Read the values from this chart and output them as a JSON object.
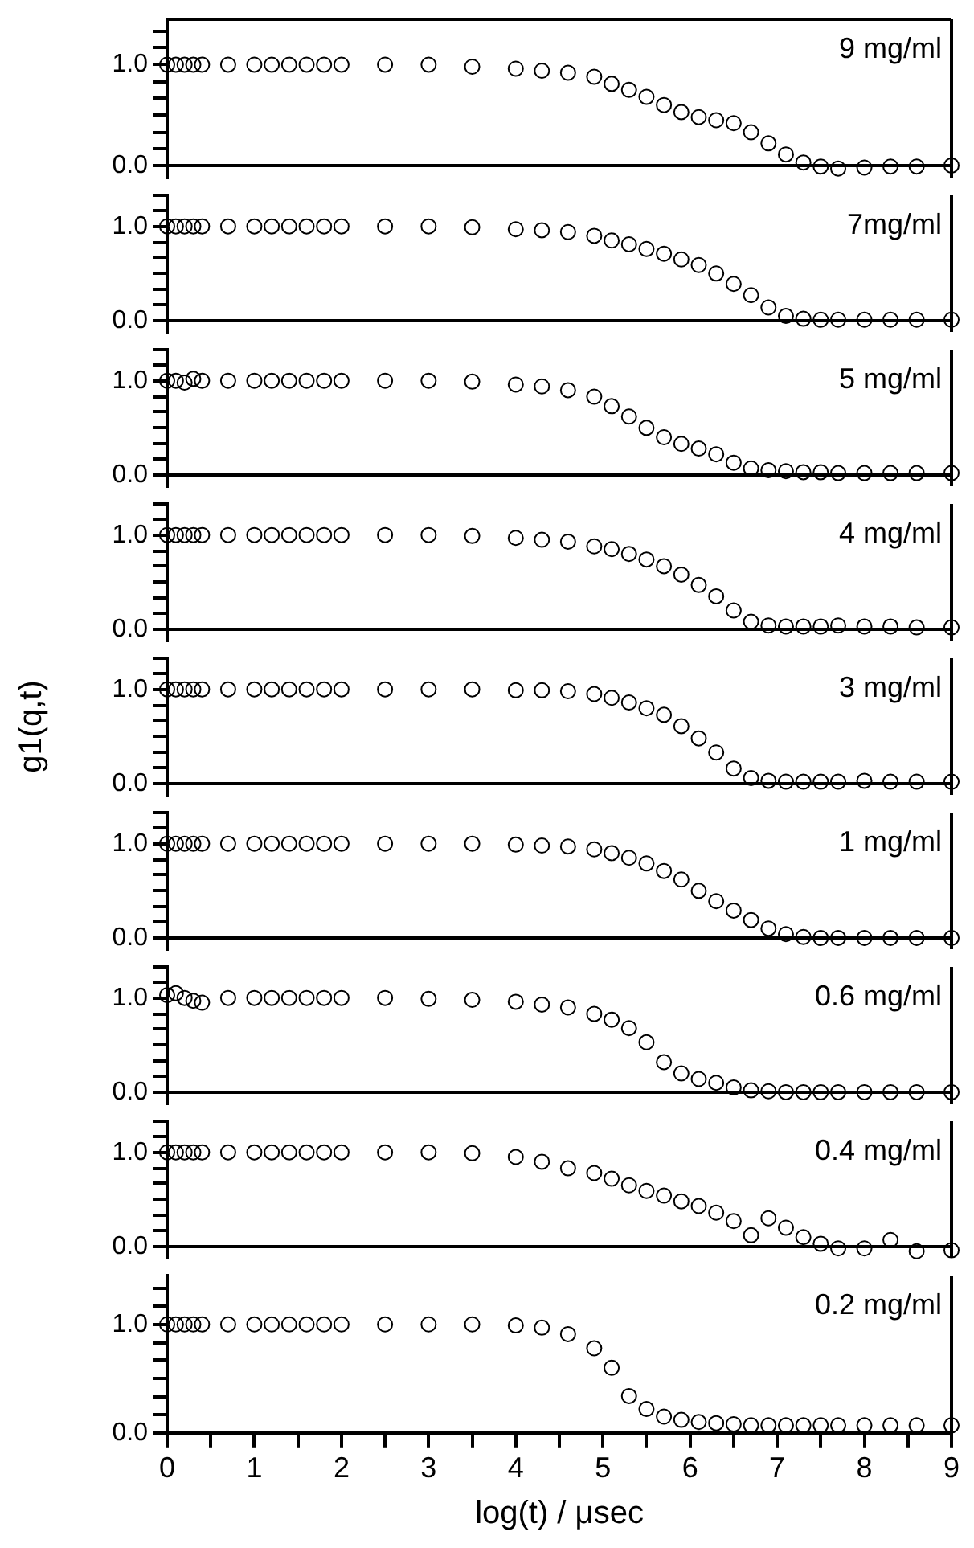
{
  "chart_data": [
    {
      "type": "scatter",
      "annotations": [
        "9 mg/ml"
      ],
      "x": [
        0,
        0.1,
        0.2,
        0.3,
        0.4,
        0.7,
        1.0,
        1.2,
        1.4,
        1.6,
        1.8,
        2.0,
        2.5,
        3.0,
        3.5,
        4.0,
        4.3,
        4.6,
        4.9,
        5.1,
        5.3,
        5.5,
        5.7,
        5.9,
        6.1,
        6.3,
        6.5,
        6.7,
        6.9,
        7.1,
        7.3,
        7.5,
        7.7,
        8.0,
        8.3,
        8.6,
        9.0
      ],
      "values": [
        1.0,
        1.0,
        1.0,
        1.0,
        1.0,
        1.0,
        1.0,
        1.0,
        1.0,
        1.0,
        1.0,
        1.0,
        1.0,
        1.0,
        0.98,
        0.96,
        0.94,
        0.92,
        0.88,
        0.81,
        0.75,
        0.68,
        0.6,
        0.53,
        0.48,
        0.45,
        0.42,
        0.33,
        0.22,
        0.11,
        0.03,
        -0.01,
        -0.03,
        -0.02,
        -0.01,
        -0.01,
        0.0
      ],
      "color": "#000000",
      "marker": "circle",
      "xlim": [
        0,
        9
      ],
      "ylim": [
        -0.12,
        1.45
      ],
      "yticks": [
        {
          "value": 0,
          "label": "0.0"
        },
        {
          "value": 0.17,
          "label": null
        },
        {
          "value": 0.33,
          "label": null
        },
        {
          "value": 0.5,
          "label": null
        },
        {
          "value": 0.67,
          "label": null
        },
        {
          "value": 0.83,
          "label": null
        },
        {
          "value": 1,
          "label": "1.0"
        },
        {
          "value": 1.17,
          "label": null
        },
        {
          "value": 1.33,
          "label": null
        }
      ],
      "ref_lines": [
        {
          "axis": "y",
          "value": 0
        }
      ],
      "tick_labels": "y",
      "grid": false,
      "legend": false
    },
    {
      "type": "scatter",
      "annotations": [
        "7mg/ml"
      ],
      "x": [
        0,
        0.1,
        0.2,
        0.3,
        0.4,
        0.7,
        1.0,
        1.2,
        1.4,
        1.6,
        1.8,
        2.0,
        2.5,
        3.0,
        3.5,
        4.0,
        4.3,
        4.6,
        4.9,
        5.1,
        5.3,
        5.5,
        5.7,
        5.9,
        6.1,
        6.3,
        6.5,
        6.7,
        6.9,
        7.1,
        7.3,
        7.5,
        7.7,
        8.0,
        8.3,
        8.6,
        9.0
      ],
      "values": [
        1.0,
        1.0,
        1.0,
        1.0,
        1.0,
        1.0,
        1.0,
        1.0,
        1.0,
        1.0,
        1.0,
        1.0,
        1.0,
        1.0,
        0.99,
        0.97,
        0.96,
        0.94,
        0.9,
        0.85,
        0.81,
        0.76,
        0.71,
        0.65,
        0.59,
        0.5,
        0.39,
        0.27,
        0.14,
        0.05,
        0.02,
        0.01,
        0.01,
        0.01,
        0.01,
        0.01,
        0.01
      ],
      "color": "#000000",
      "marker": "circle",
      "xlim": [
        0,
        9
      ],
      "ylim": [
        -0.12,
        1.33
      ],
      "yticks": [
        {
          "value": 0,
          "label": "0.0"
        },
        {
          "value": 0.17,
          "label": null
        },
        {
          "value": 0.33,
          "label": null
        },
        {
          "value": 0.5,
          "label": null
        },
        {
          "value": 0.67,
          "label": null
        },
        {
          "value": 0.83,
          "label": null
        },
        {
          "value": 1,
          "label": "1.0"
        },
        {
          "value": 1.17,
          "label": null
        },
        {
          "value": 1.33,
          "label": null
        }
      ],
      "ref_lines": [
        {
          "axis": "y",
          "value": 0
        }
      ],
      "tick_labels": "y",
      "grid": false,
      "legend": false
    },
    {
      "type": "scatter",
      "annotations": [
        "5 mg/ml"
      ],
      "x": [
        0,
        0.1,
        0.2,
        0.3,
        0.4,
        0.7,
        1.0,
        1.2,
        1.4,
        1.6,
        1.8,
        2.0,
        2.5,
        3.0,
        3.5,
        4.0,
        4.3,
        4.6,
        4.9,
        5.1,
        5.3,
        5.5,
        5.7,
        5.9,
        6.1,
        6.3,
        6.5,
        6.7,
        6.9,
        7.1,
        7.3,
        7.5,
        7.7,
        8.0,
        8.3,
        8.6,
        9.0
      ],
      "values": [
        1.0,
        1.0,
        0.98,
        1.02,
        1.0,
        1.0,
        1.0,
        1.0,
        1.0,
        1.0,
        1.0,
        1.0,
        1.0,
        1.0,
        0.99,
        0.96,
        0.94,
        0.9,
        0.83,
        0.73,
        0.62,
        0.5,
        0.4,
        0.33,
        0.28,
        0.22,
        0.13,
        0.07,
        0.05,
        0.04,
        0.03,
        0.03,
        0.02,
        0.02,
        0.02,
        0.02,
        0.02
      ],
      "color": "#000000",
      "marker": "circle",
      "xlim": [
        0,
        9
      ],
      "ylim": [
        -0.12,
        1.33
      ],
      "yticks": [
        {
          "value": 0,
          "label": "0.0"
        },
        {
          "value": 0.17,
          "label": null
        },
        {
          "value": 0.33,
          "label": null
        },
        {
          "value": 0.5,
          "label": null
        },
        {
          "value": 0.67,
          "label": null
        },
        {
          "value": 0.83,
          "label": null
        },
        {
          "value": 1,
          "label": "1.0"
        },
        {
          "value": 1.17,
          "label": null
        },
        {
          "value": 1.33,
          "label": null
        }
      ],
      "ref_lines": [
        {
          "axis": "y",
          "value": 0
        }
      ],
      "tick_labels": "y",
      "grid": false,
      "legend": false
    },
    {
      "type": "scatter",
      "annotations": [
        "4 mg/ml"
      ],
      "x": [
        0,
        0.1,
        0.2,
        0.3,
        0.4,
        0.7,
        1.0,
        1.2,
        1.4,
        1.6,
        1.8,
        2.0,
        2.5,
        3.0,
        3.5,
        4.0,
        4.3,
        4.6,
        4.9,
        5.1,
        5.3,
        5.5,
        5.7,
        5.9,
        6.1,
        6.3,
        6.5,
        6.7,
        6.9,
        7.1,
        7.3,
        7.5,
        7.7,
        8.0,
        8.3,
        8.6,
        9.0
      ],
      "values": [
        1.0,
        1.0,
        1.0,
        1.0,
        1.0,
        1.0,
        1.0,
        1.0,
        1.0,
        1.0,
        1.0,
        1.0,
        1.0,
        1.0,
        0.99,
        0.97,
        0.95,
        0.93,
        0.88,
        0.85,
        0.8,
        0.74,
        0.67,
        0.58,
        0.47,
        0.35,
        0.2,
        0.08,
        0.04,
        0.03,
        0.03,
        0.03,
        0.04,
        0.03,
        0.03,
        0.02,
        0.02
      ],
      "color": "#000000",
      "marker": "circle",
      "xlim": [
        0,
        9
      ],
      "ylim": [
        -0.12,
        1.33
      ],
      "yticks": [
        {
          "value": 0,
          "label": "0.0"
        },
        {
          "value": 0.17,
          "label": null
        },
        {
          "value": 0.33,
          "label": null
        },
        {
          "value": 0.5,
          "label": null
        },
        {
          "value": 0.67,
          "label": null
        },
        {
          "value": 0.83,
          "label": null
        },
        {
          "value": 1,
          "label": "1.0"
        },
        {
          "value": 1.17,
          "label": null
        },
        {
          "value": 1.33,
          "label": null
        }
      ],
      "ref_lines": [
        {
          "axis": "y",
          "value": 0
        }
      ],
      "tick_labels": "y",
      "grid": false,
      "legend": false
    },
    {
      "type": "scatter",
      "annotations": [
        "3 mg/ml"
      ],
      "ylabel": "g1(q,t)",
      "x": [
        0,
        0.1,
        0.2,
        0.3,
        0.4,
        0.7,
        1.0,
        1.2,
        1.4,
        1.6,
        1.8,
        2.0,
        2.5,
        3.0,
        3.5,
        4.0,
        4.3,
        4.6,
        4.9,
        5.1,
        5.3,
        5.5,
        5.7,
        5.9,
        6.1,
        6.3,
        6.5,
        6.7,
        6.9,
        7.1,
        7.3,
        7.5,
        7.7,
        8.0,
        8.3,
        8.6,
        9.0
      ],
      "values": [
        1.0,
        1.0,
        1.0,
        1.0,
        1.0,
        1.0,
        1.0,
        1.0,
        1.0,
        1.0,
        1.0,
        1.0,
        1.0,
        1.0,
        1.0,
        0.99,
        0.99,
        0.98,
        0.95,
        0.91,
        0.86,
        0.8,
        0.73,
        0.61,
        0.48,
        0.33,
        0.16,
        0.06,
        0.03,
        0.02,
        0.02,
        0.02,
        0.02,
        0.03,
        0.02,
        0.02,
        0.02
      ],
      "color": "#000000",
      "marker": "circle",
      "xlim": [
        0,
        9
      ],
      "ylim": [
        -0.12,
        1.33
      ],
      "yticks": [
        {
          "value": 0,
          "label": "0.0"
        },
        {
          "value": 0.17,
          "label": null
        },
        {
          "value": 0.33,
          "label": null
        },
        {
          "value": 0.5,
          "label": null
        },
        {
          "value": 0.67,
          "label": null
        },
        {
          "value": 0.83,
          "label": null
        },
        {
          "value": 1,
          "label": "1.0"
        },
        {
          "value": 1.17,
          "label": null
        },
        {
          "value": 1.33,
          "label": null
        }
      ],
      "ref_lines": [
        {
          "axis": "y",
          "value": 0
        }
      ],
      "tick_labels": "y",
      "grid": false,
      "legend": false
    },
    {
      "type": "scatter",
      "annotations": [
        "1 mg/ml"
      ],
      "x": [
        0,
        0.1,
        0.2,
        0.3,
        0.4,
        0.7,
        1.0,
        1.2,
        1.4,
        1.6,
        1.8,
        2.0,
        2.5,
        3.0,
        3.5,
        4.0,
        4.3,
        4.6,
        4.9,
        5.1,
        5.3,
        5.5,
        5.7,
        5.9,
        6.1,
        6.3,
        6.5,
        6.7,
        6.9,
        7.1,
        7.3,
        7.5,
        7.7,
        8.0,
        8.3,
        8.6,
        9.0
      ],
      "values": [
        1.0,
        1.0,
        1.0,
        1.0,
        1.0,
        1.0,
        1.0,
        1.0,
        1.0,
        1.0,
        1.0,
        1.0,
        1.0,
        1.0,
        1.0,
        0.99,
        0.98,
        0.97,
        0.94,
        0.9,
        0.85,
        0.79,
        0.71,
        0.62,
        0.5,
        0.39,
        0.29,
        0.19,
        0.1,
        0.04,
        0.01,
        0.0,
        0.0,
        0.0,
        0.0,
        0.0,
        0.0
      ],
      "color": "#000000",
      "marker": "circle",
      "xlim": [
        0,
        9
      ],
      "ylim": [
        -0.12,
        1.33
      ],
      "yticks": [
        {
          "value": 0,
          "label": "0.0"
        },
        {
          "value": 0.17,
          "label": null
        },
        {
          "value": 0.33,
          "label": null
        },
        {
          "value": 0.5,
          "label": null
        },
        {
          "value": 0.67,
          "label": null
        },
        {
          "value": 0.83,
          "label": null
        },
        {
          "value": 1,
          "label": "1.0"
        },
        {
          "value": 1.17,
          "label": null
        },
        {
          "value": 1.33,
          "label": null
        }
      ],
      "ref_lines": [
        {
          "axis": "y",
          "value": 0
        }
      ],
      "tick_labels": "y",
      "grid": false,
      "legend": false
    },
    {
      "type": "scatter",
      "annotations": [
        "0.6 mg/ml"
      ],
      "x": [
        0,
        0.1,
        0.2,
        0.3,
        0.4,
        0.7,
        1.0,
        1.2,
        1.4,
        1.6,
        1.8,
        2.0,
        2.5,
        3.0,
        3.5,
        4.0,
        4.3,
        4.6,
        4.9,
        5.1,
        5.3,
        5.5,
        5.7,
        5.9,
        6.1,
        6.3,
        6.5,
        6.7,
        6.9,
        7.1,
        7.3,
        7.5,
        7.7,
        8.0,
        8.3,
        8.6,
        9.0
      ],
      "values": [
        1.03,
        1.05,
        1.0,
        0.97,
        0.95,
        1.0,
        1.0,
        1.0,
        1.0,
        1.0,
        1.0,
        1.0,
        1.0,
        0.99,
        0.98,
        0.96,
        0.93,
        0.9,
        0.83,
        0.77,
        0.68,
        0.53,
        0.32,
        0.2,
        0.14,
        0.1,
        0.05,
        0.02,
        0.01,
        0.0,
        0.0,
        0.0,
        0.0,
        0.0,
        0.0,
        0.0,
        0.0
      ],
      "color": "#000000",
      "marker": "circle",
      "xlim": [
        0,
        9
      ],
      "ylim": [
        -0.12,
        1.33
      ],
      "yticks": [
        {
          "value": 0,
          "label": "0.0"
        },
        {
          "value": 0.17,
          "label": null
        },
        {
          "value": 0.33,
          "label": null
        },
        {
          "value": 0.5,
          "label": null
        },
        {
          "value": 0.67,
          "label": null
        },
        {
          "value": 0.83,
          "label": null
        },
        {
          "value": 1,
          "label": "1.0"
        },
        {
          "value": 1.17,
          "label": null
        },
        {
          "value": 1.33,
          "label": null
        }
      ],
      "ref_lines": [
        {
          "axis": "y",
          "value": 0
        }
      ],
      "tick_labels": "y",
      "grid": false,
      "legend": false
    },
    {
      "type": "scatter",
      "annotations": [
        "0.4 mg/ml"
      ],
      "x": [
        0,
        0.1,
        0.2,
        0.3,
        0.4,
        0.7,
        1.0,
        1.2,
        1.4,
        1.6,
        1.8,
        2.0,
        2.5,
        3.0,
        3.5,
        4.0,
        4.3,
        4.6,
        4.9,
        5.1,
        5.3,
        5.5,
        5.7,
        5.9,
        6.1,
        6.3,
        6.5,
        6.7,
        6.9,
        7.1,
        7.3,
        7.5,
        7.7,
        8.0,
        8.3,
        8.6,
        9.0
      ],
      "values": [
        1.0,
        1.0,
        1.0,
        1.0,
        1.0,
        1.0,
        1.0,
        1.0,
        1.0,
        1.0,
        1.0,
        1.0,
        1.0,
        1.0,
        0.99,
        0.95,
        0.9,
        0.83,
        0.78,
        0.72,
        0.65,
        0.59,
        0.54,
        0.48,
        0.43,
        0.36,
        0.27,
        0.12,
        0.3,
        0.2,
        0.1,
        0.03,
        -0.02,
        -0.02,
        0.07,
        -0.05,
        -0.04
      ],
      "color": "#000000",
      "marker": "circle",
      "xlim": [
        0,
        9
      ],
      "ylim": [
        -0.12,
        1.33
      ],
      "yticks": [
        {
          "value": 0,
          "label": "0.0"
        },
        {
          "value": 0.17,
          "label": null
        },
        {
          "value": 0.33,
          "label": null
        },
        {
          "value": 0.5,
          "label": null
        },
        {
          "value": 0.67,
          "label": null
        },
        {
          "value": 0.83,
          "label": null
        },
        {
          "value": 1,
          "label": "1.0"
        },
        {
          "value": 1.17,
          "label": null
        },
        {
          "value": 1.33,
          "label": null
        }
      ],
      "ref_lines": [
        {
          "axis": "y",
          "value": 0
        }
      ],
      "tick_labels": "y",
      "grid": false,
      "legend": false
    },
    {
      "type": "scatter",
      "annotations": [
        "0.2 mg/ml"
      ],
      "xlabel": "log(t) / μsec",
      "x": [
        0,
        0.1,
        0.2,
        0.3,
        0.4,
        0.7,
        1.0,
        1.2,
        1.4,
        1.6,
        1.8,
        2.0,
        2.5,
        3.0,
        3.5,
        4.0,
        4.3,
        4.6,
        4.9,
        5.1,
        5.3,
        5.5,
        5.7,
        5.9,
        6.1,
        6.3,
        6.5,
        6.7,
        6.9,
        7.1,
        7.3,
        7.5,
        7.7,
        8.0,
        8.3,
        8.6,
        9.0
      ],
      "values": [
        1.0,
        1.0,
        1.0,
        1.0,
        1.0,
        1.0,
        1.0,
        1.0,
        1.0,
        1.0,
        1.0,
        1.0,
        1.0,
        1.0,
        1.0,
        0.99,
        0.97,
        0.91,
        0.78,
        0.6,
        0.34,
        0.22,
        0.15,
        0.12,
        0.1,
        0.09,
        0.08,
        0.07,
        0.07,
        0.07,
        0.07,
        0.07,
        0.07,
        0.07,
        0.07,
        0.07,
        0.07
      ],
      "color": "#000000",
      "marker": "circle",
      "xlim": [
        0,
        9
      ],
      "xticks": [
        0,
        {
          "value": 0.5,
          "label": null
        },
        1,
        {
          "value": 1.5,
          "label": null
        },
        2,
        {
          "value": 2.5,
          "label": null
        },
        3,
        {
          "value": 3.5,
          "label": null
        },
        4,
        {
          "value": 4.5,
          "label": null
        },
        5,
        {
          "value": 5.5,
          "label": null
        },
        6,
        {
          "value": 6.5,
          "label": null
        },
        7,
        {
          "value": 7.5,
          "label": null
        },
        8,
        {
          "value": 8.5,
          "label": null
        },
        9
      ],
      "ylim": [
        0,
        1.45
      ],
      "yticks": [
        {
          "value": 0,
          "label": "0.0"
        },
        {
          "value": 0.17,
          "label": null
        },
        {
          "value": 0.33,
          "label": null
        },
        {
          "value": 0.5,
          "label": null
        },
        {
          "value": 0.67,
          "label": null
        },
        {
          "value": 0.83,
          "label": null
        },
        {
          "value": 1,
          "label": "1.0"
        },
        {
          "value": 1.17,
          "label": null
        },
        {
          "value": 1.33,
          "label": null
        }
      ],
      "grid": false,
      "legend": false
    }
  ]
}
